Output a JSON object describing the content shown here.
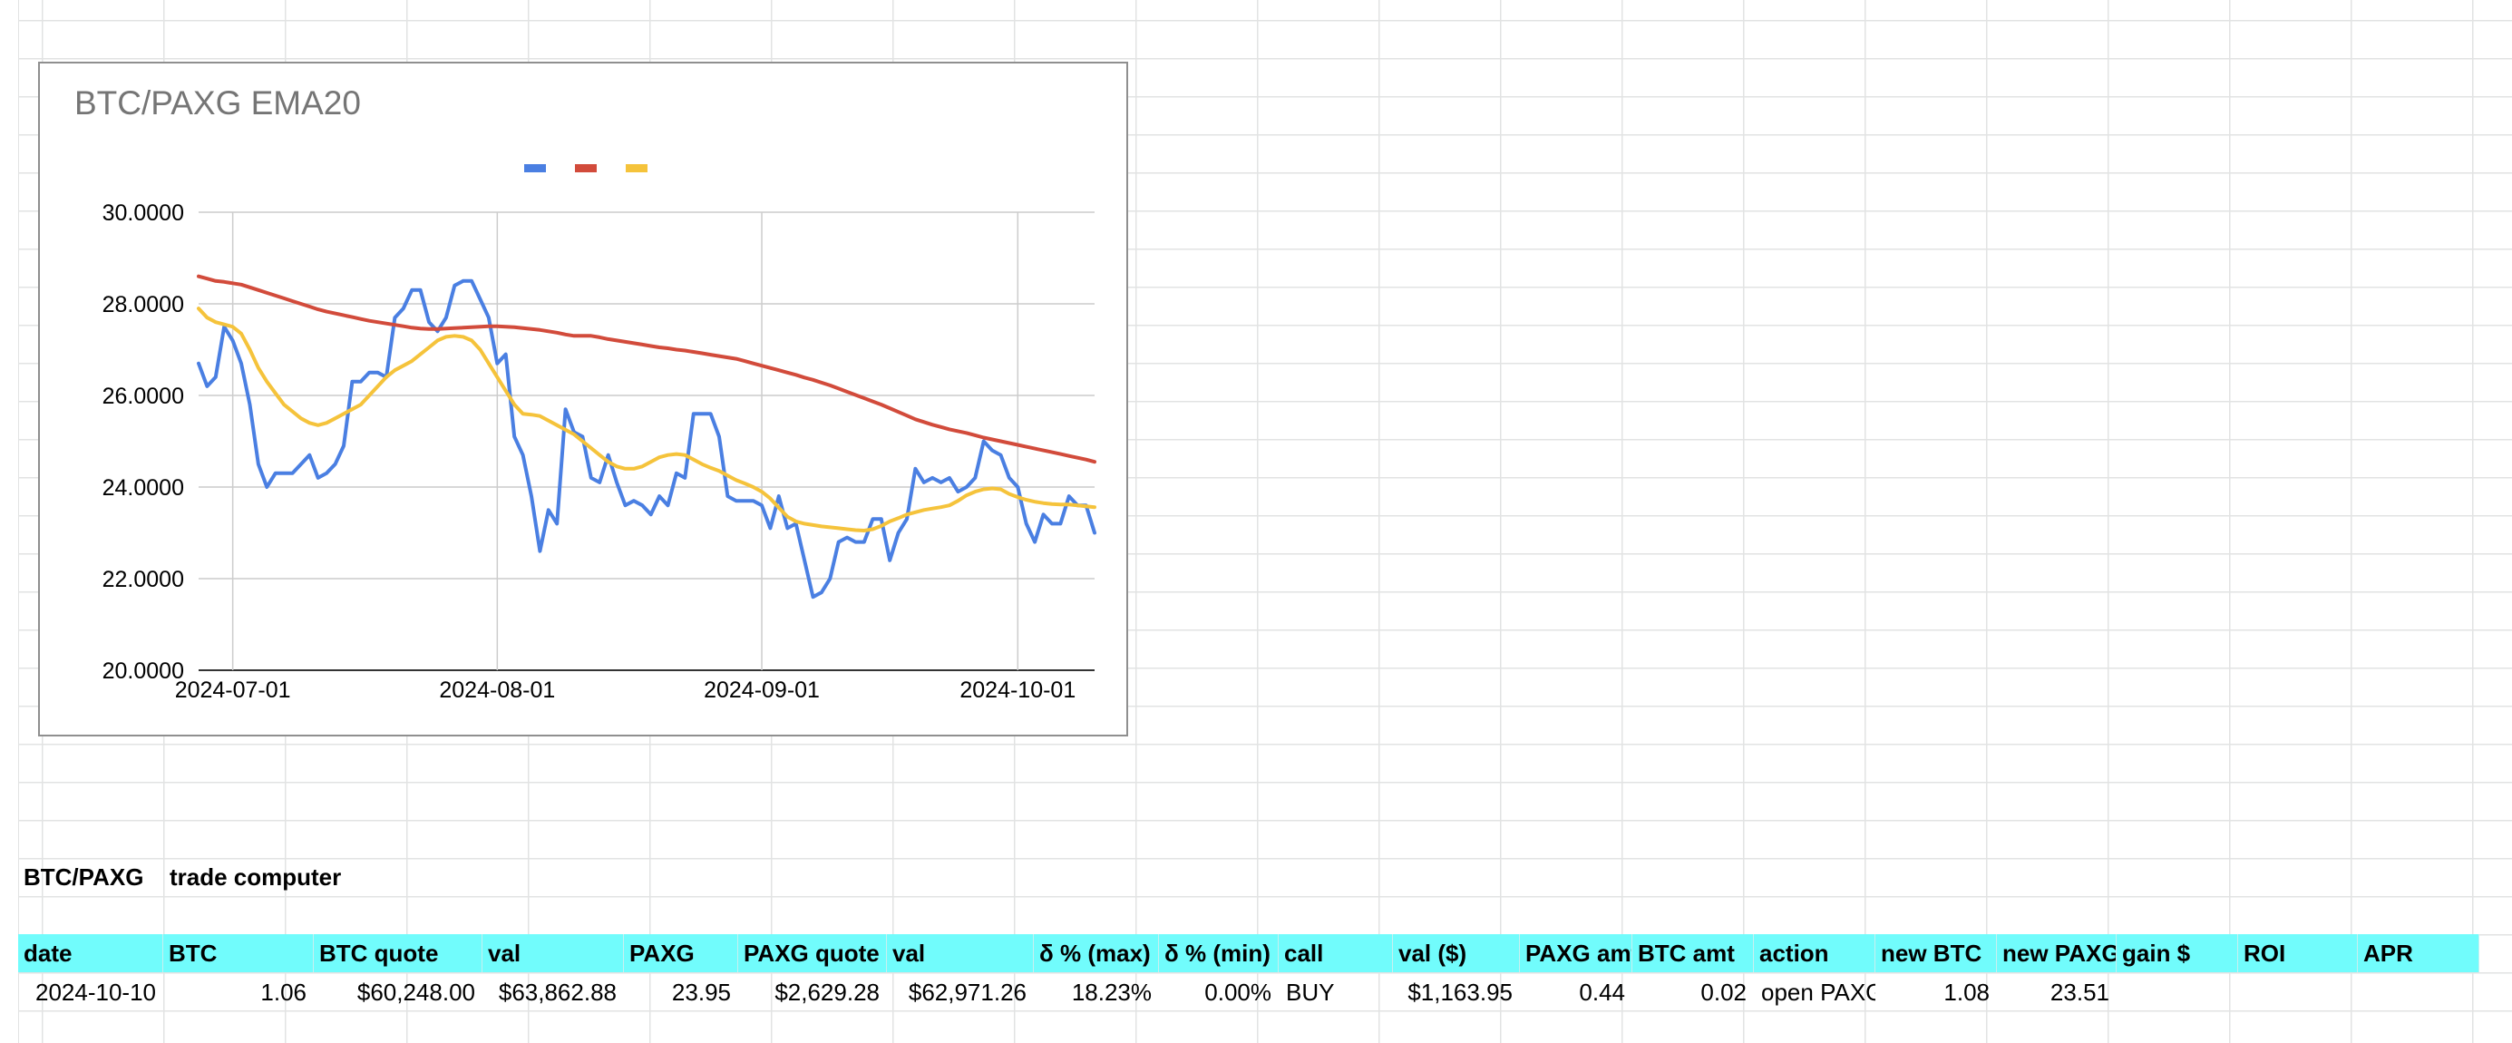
{
  "sheet": {
    "label_a": "BTC/PAXG",
    "label_b": "trade computer",
    "headers": [
      "date",
      "BTC",
      "BTC quote",
      "val",
      "PAXG",
      "PAXG quote",
      "val",
      "δ % (max)",
      "δ % (min)",
      "call",
      "val ($)",
      "PAXG amt",
      "BTC amt",
      "action",
      "new BTC",
      "new PAXG",
      "gain $",
      "ROI",
      "APR"
    ],
    "row": [
      "2024-10-10",
      "1.06",
      "$60,248.00",
      "$63,862.88",
      "23.95",
      "$2,629.28",
      "$62,971.26",
      "18.23%",
      "0.00%",
      "BUY",
      "$1,163.95",
      "0.44",
      "0.02",
      "open PAXG",
      "1.08",
      "23.51",
      "",
      "",
      ""
    ]
  },
  "chart_data": {
    "type": "line",
    "title": "BTC/PAXG EMA20",
    "x_start": "2024-06-27",
    "x_end": "2024-10-10",
    "x_ticks": [
      "2024-07-01",
      "2024-08-01",
      "2024-09-01",
      "2024-10-01"
    ],
    "ylim": [
      20,
      30
    ],
    "y_ticks": [
      "20.0000",
      "22.0000",
      "24.0000",
      "26.0000",
      "28.0000",
      "30.0000"
    ],
    "grid": true,
    "legend": "top-center",
    "series": [
      {
        "color": "#4a7fe2",
        "values": [
          26.7,
          26.2,
          26.4,
          27.5,
          27.2,
          26.7,
          25.8,
          24.5,
          24.0,
          24.3,
          24.3,
          24.3,
          24.5,
          24.7,
          24.2,
          24.3,
          24.5,
          24.9,
          26.3,
          26.3,
          26.5,
          26.5,
          26.4,
          27.7,
          27.9,
          28.3,
          28.3,
          27.6,
          27.4,
          27.7,
          28.4,
          28.5,
          28.5,
          28.1,
          27.7,
          26.7,
          26.9,
          25.1,
          24.7,
          23.8,
          22.6,
          23.5,
          23.2,
          25.7,
          25.2,
          25.1,
          24.2,
          24.1,
          24.7,
          24.1,
          23.6,
          23.7,
          23.6,
          23.4,
          23.8,
          23.6,
          24.3,
          24.2,
          25.6,
          25.6,
          25.6,
          25.1,
          23.8,
          23.7,
          23.7,
          23.7,
          23.6,
          23.1,
          23.8,
          23.1,
          23.2,
          22.4,
          21.6,
          21.7,
          22.0,
          22.8,
          22.9,
          22.8,
          22.8,
          23.3,
          23.3,
          22.4,
          23.0,
          23.3,
          24.4,
          24.1,
          24.2,
          24.1,
          24.2,
          23.9,
          24.0,
          24.2,
          25.0,
          24.8,
          24.7,
          24.2,
          24.0,
          23.2,
          22.8,
          23.4,
          23.2,
          23.2,
          23.8,
          23.6,
          23.6,
          23.0
        ]
      },
      {
        "color": "#d24b3b",
        "values": [
          28.6,
          28.55,
          28.5,
          28.48,
          28.45,
          28.42,
          28.36,
          28.3,
          28.24,
          28.18,
          28.12,
          28.06,
          28.0,
          27.94,
          27.88,
          27.83,
          27.79,
          27.75,
          27.71,
          27.67,
          27.63,
          27.6,
          27.57,
          27.54,
          27.51,
          27.48,
          27.46,
          27.45,
          27.45,
          27.46,
          27.47,
          27.48,
          27.49,
          27.5,
          27.51,
          27.51,
          27.5,
          27.49,
          27.47,
          27.45,
          27.43,
          27.4,
          27.37,
          27.33,
          27.3,
          27.3,
          27.3,
          27.27,
          27.23,
          27.2,
          27.17,
          27.14,
          27.11,
          27.08,
          27.05,
          27.03,
          27.0,
          26.98,
          26.95,
          26.92,
          26.89,
          26.86,
          26.83,
          26.8,
          26.75,
          26.7,
          26.65,
          26.6,
          26.55,
          26.5,
          26.45,
          26.39,
          26.34,
          26.28,
          26.22,
          26.15,
          26.08,
          26.01,
          25.94,
          25.87,
          25.8,
          25.72,
          25.64,
          25.56,
          25.48,
          25.42,
          25.36,
          25.31,
          25.26,
          25.22,
          25.18,
          25.13,
          25.08,
          25.04,
          25.0,
          24.96,
          24.92,
          24.88,
          24.84,
          24.8,
          24.76,
          24.72,
          24.68,
          24.64,
          24.6,
          24.55
        ]
      },
      {
        "color": "#f5c33b",
        "values": [
          27.9,
          27.7,
          27.6,
          27.55,
          27.5,
          27.35,
          27.0,
          26.6,
          26.3,
          26.05,
          25.8,
          25.65,
          25.5,
          25.4,
          25.35,
          25.4,
          25.5,
          25.6,
          25.7,
          25.8,
          26.0,
          26.2,
          26.4,
          26.55,
          26.65,
          26.75,
          26.9,
          27.05,
          27.2,
          27.28,
          27.3,
          27.28,
          27.2,
          27.0,
          26.7,
          26.4,
          26.1,
          25.8,
          25.6,
          25.58,
          25.55,
          25.45,
          25.35,
          25.25,
          25.15,
          25.0,
          24.85,
          24.7,
          24.55,
          24.45,
          24.4,
          24.4,
          24.45,
          24.55,
          24.65,
          24.7,
          24.72,
          24.7,
          24.6,
          24.5,
          24.42,
          24.35,
          24.25,
          24.15,
          24.08,
          24.0,
          23.9,
          23.75,
          23.55,
          23.35,
          23.25,
          23.2,
          23.17,
          23.14,
          23.12,
          23.1,
          23.08,
          23.06,
          23.05,
          23.08,
          23.15,
          23.25,
          23.32,
          23.4,
          23.45,
          23.5,
          23.53,
          23.56,
          23.6,
          23.7,
          23.82,
          23.9,
          23.95,
          23.97,
          23.95,
          23.85,
          23.78,
          23.72,
          23.68,
          23.65,
          23.63,
          23.62,
          23.62,
          23.6,
          23.58,
          23.56
        ]
      }
    ]
  }
}
